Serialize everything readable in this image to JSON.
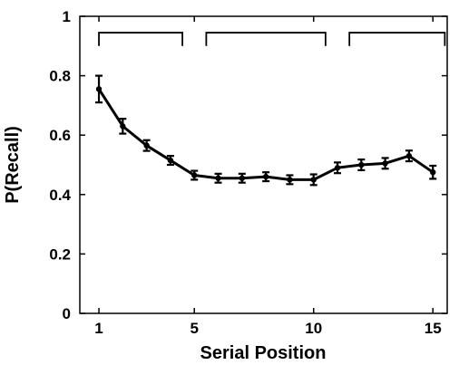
{
  "chart_data": {
    "type": "line",
    "xlabel": "Serial Position",
    "ylabel": "P(Recall)",
    "xlim": [
      0.2,
      15.6
    ],
    "ylim": [
      0,
      1
    ],
    "xticks": [
      1,
      5,
      10,
      15
    ],
    "xtick_labels": [
      "1",
      "5",
      "10",
      "15"
    ],
    "yticks": [
      0,
      0.2,
      0.4,
      0.6,
      0.8,
      1
    ],
    "ytick_labels": [
      "0",
      "0.2",
      "0.4",
      "0.6",
      "0.8",
      "1"
    ],
    "grid": false,
    "series": [
      {
        "x": [
          1,
          2,
          3,
          4,
          5,
          6,
          7,
          8,
          9,
          10,
          11,
          12,
          13,
          14,
          15
        ],
        "values": [
          0.755,
          0.63,
          0.565,
          0.515,
          0.465,
          0.455,
          0.455,
          0.46,
          0.45,
          0.45,
          0.49,
          0.5,
          0.505,
          0.53,
          0.475
        ],
        "errors": [
          0.045,
          0.025,
          0.018,
          0.015,
          0.015,
          0.015,
          0.015,
          0.015,
          0.015,
          0.018,
          0.018,
          0.018,
          0.018,
          0.018,
          0.022
        ],
        "color": "#000000"
      }
    ],
    "brackets": [
      {
        "from": 1,
        "to": 4.5
      },
      {
        "from": 5.5,
        "to": 10.5
      },
      {
        "from": 11.5,
        "to": 15.5
      }
    ],
    "bracket_level": 0.945,
    "bracket_tick_depth": 0.045
  }
}
